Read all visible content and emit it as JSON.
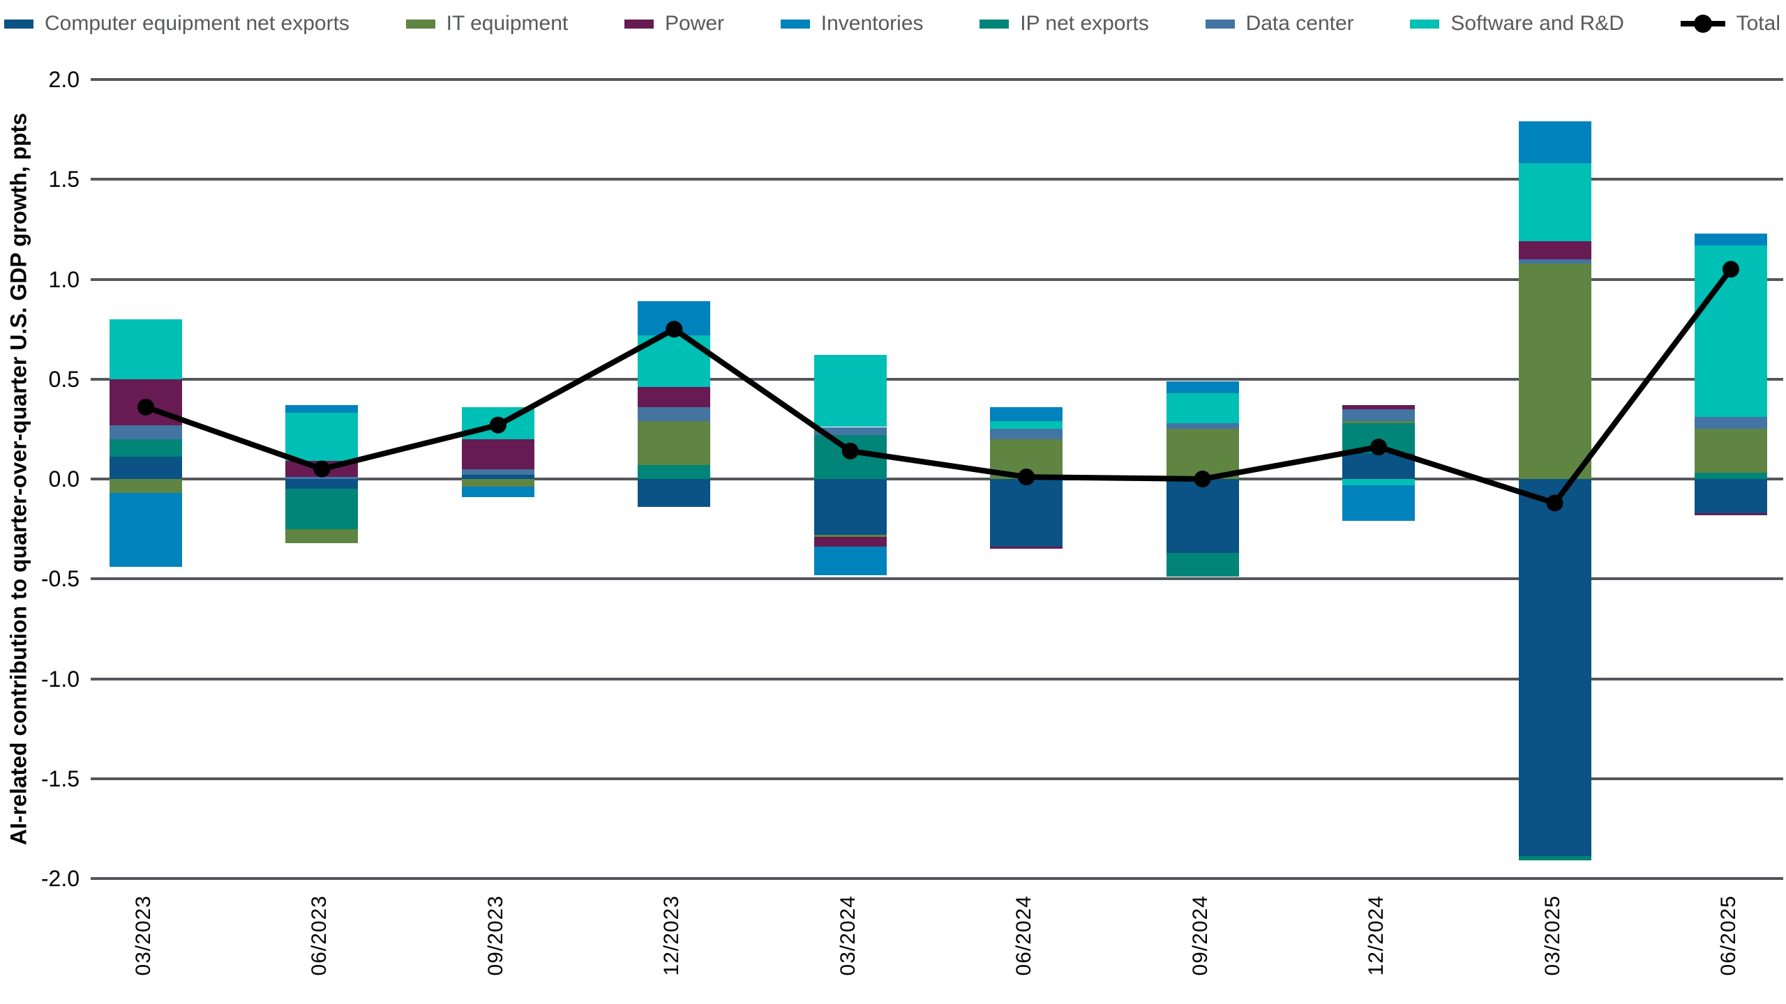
{
  "page": {
    "background": "#ffffff"
  },
  "chart_data": {
    "type": "bar",
    "subtype": "stacked-bar-with-total-line",
    "title": "",
    "xlabel": "",
    "ylabel": "AI-related contribution to quarter-over-quarter U.S. GDP growth, ppts",
    "ylim": [
      -2.0,
      2.0
    ],
    "ytick_step": 0.5,
    "grid": "horizontal",
    "legend_position": "top",
    "categories": [
      "03/2023",
      "06/2023",
      "09/2023",
      "12/2023",
      "03/2024",
      "06/2024",
      "09/2024",
      "12/2024",
      "03/2025",
      "06/2025"
    ],
    "series": [
      {
        "id": "computer",
        "name": "Computer equipment net exports",
        "color": "#0A5384",
        "values": [
          0.11,
          -0.05,
          0.02,
          -0.14,
          -0.28,
          -0.34,
          -0.37,
          0.13,
          -1.89,
          -0.17
        ]
      },
      {
        "id": "it",
        "name": "IT equipment",
        "color": "#608542",
        "values": [
          -0.07,
          -0.07,
          -0.04,
          0.22,
          -0.01,
          0.2,
          0.25,
          0.01,
          1.08,
          0.22
        ]
      },
      {
        "id": "power",
        "name": "Power",
        "color": "#671B52",
        "values": [
          0.23,
          0.08,
          0.15,
          0.1,
          -0.05,
          -0.01,
          0.0,
          0.02,
          0.09,
          -0.01
        ]
      },
      {
        "id": "inventories",
        "name": "Inventories",
        "color": "#0082BC",
        "values": [
          -0.37,
          0.04,
          -0.05,
          0.17,
          -0.14,
          0.07,
          0.06,
          -0.18,
          0.21,
          0.06
        ]
      },
      {
        "id": "ip",
        "name": "IP net exports",
        "color": "#008578",
        "values": [
          0.09,
          -0.2,
          0.0,
          0.07,
          0.22,
          0.0,
          -0.12,
          0.15,
          -0.02,
          0.03
        ]
      },
      {
        "id": "datacenter",
        "name": "Data center",
        "color": "#4374A2",
        "values": [
          0.07,
          0.01,
          0.03,
          0.07,
          0.04,
          0.05,
          0.03,
          0.06,
          0.02,
          0.06
        ]
      },
      {
        "id": "software",
        "name": "Software and R&D",
        "color": "#00BFB4",
        "values": [
          0.3,
          0.24,
          0.16,
          0.26,
          0.36,
          0.04,
          0.15,
          -0.03,
          0.39,
          0.86
        ]
      }
    ],
    "total_series": {
      "id": "total",
      "name": "Total",
      "color": "#000000",
      "values": [
        0.36,
        0.05,
        0.27,
        0.75,
        0.14,
        0.01,
        0.0,
        0.16,
        -0.12,
        1.05
      ]
    },
    "stack_order": [
      "computer",
      "ip",
      "it",
      "datacenter",
      "power",
      "software",
      "inventories"
    ],
    "colors": {
      "gridline": "#54565A",
      "axis_text": "#000000",
      "legend_text": "#58595B"
    }
  }
}
